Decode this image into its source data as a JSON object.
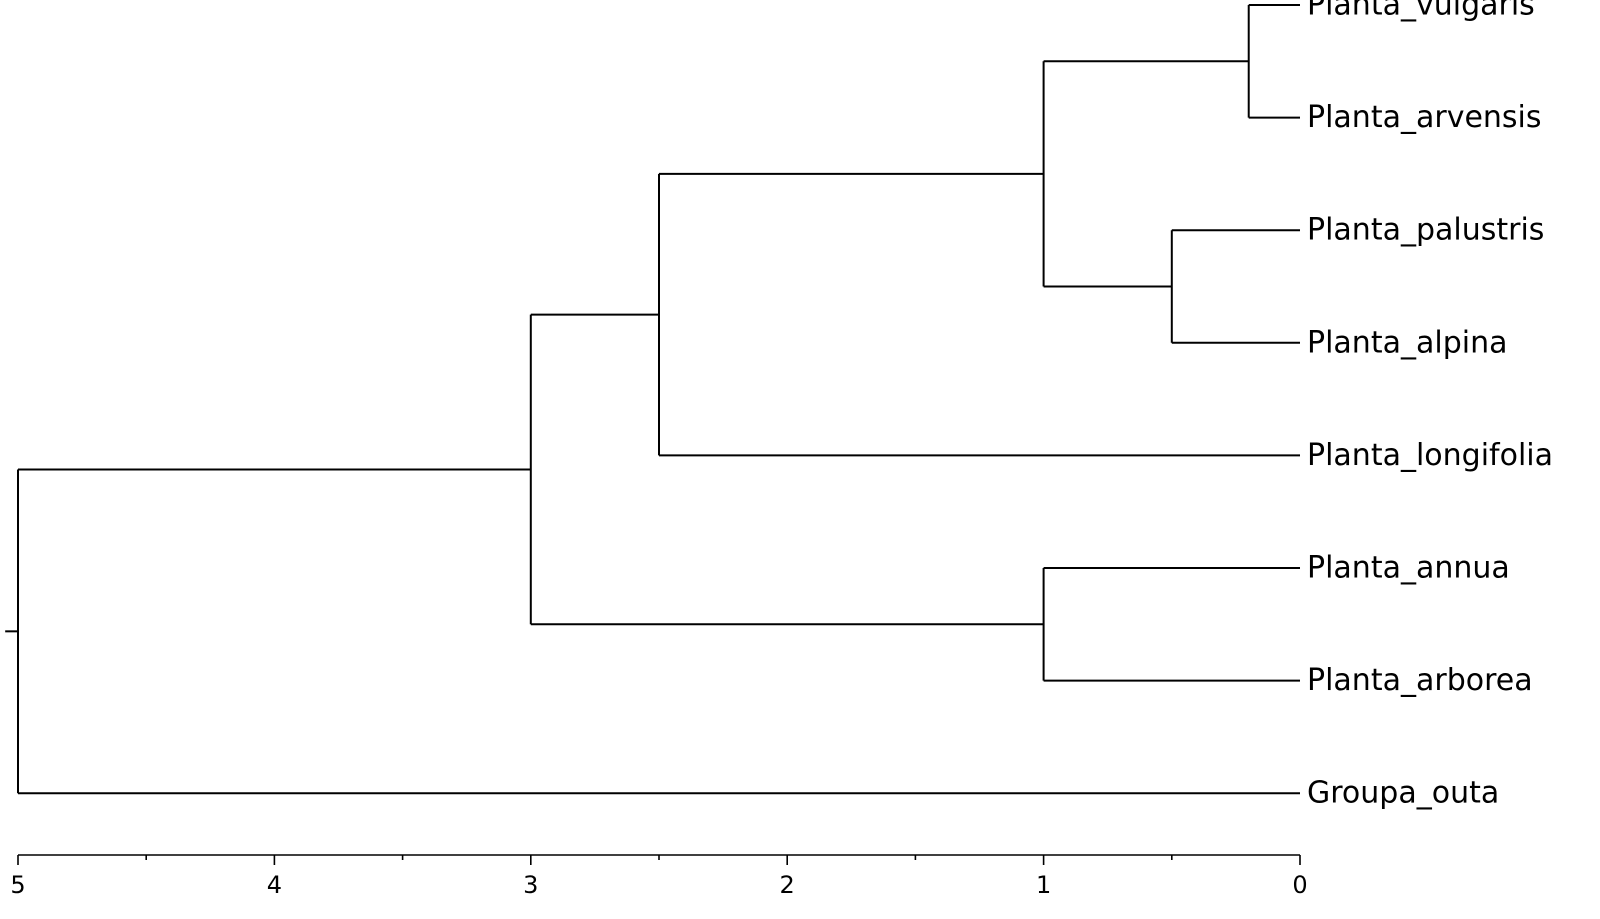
{
  "tree": {
    "root_branch_length": 0.25,
    "root": {
      "height": 5,
      "children": [
        {
          "height": 3,
          "children": [
            {
              "height": 2.5,
              "children": [
                {
                  "height": 1,
                  "children": [
                    {
                      "height": 0.2,
                      "children": [
                        {
                          "name": "Planta_vulgaris",
                          "height": 0
                        },
                        {
                          "name": "Planta_arvensis",
                          "height": 0
                        }
                      ]
                    },
                    {
                      "height": 0.5,
                      "children": [
                        {
                          "name": "Planta_palustris",
                          "height": 0
                        },
                        {
                          "name": "Planta_alpina",
                          "height": 0
                        }
                      ]
                    }
                  ]
                },
                {
                  "name": "Planta_longifolia",
                  "height": 0
                }
              ]
            },
            {
              "height": 1,
              "children": [
                {
                  "name": "Planta_annua",
                  "height": 0
                },
                {
                  "name": "Planta_arborea",
                  "height": 0
                }
              ]
            }
          ]
        },
        {
          "name": "Groupa_outa",
          "height": 0
        }
      ]
    }
  },
  "axis": {
    "min": 0,
    "max": 5,
    "major_ticks": [
      5,
      4,
      3,
      2,
      1,
      0
    ],
    "minor_ticks": [
      4.5,
      3.5,
      2.5,
      1.5,
      0.5
    ],
    "tick_labels": [
      "5",
      "4",
      "3",
      "2",
      "1",
      "0"
    ]
  },
  "colors": {
    "line": "#000000",
    "text": "#000000",
    "background": "#ffffff"
  }
}
